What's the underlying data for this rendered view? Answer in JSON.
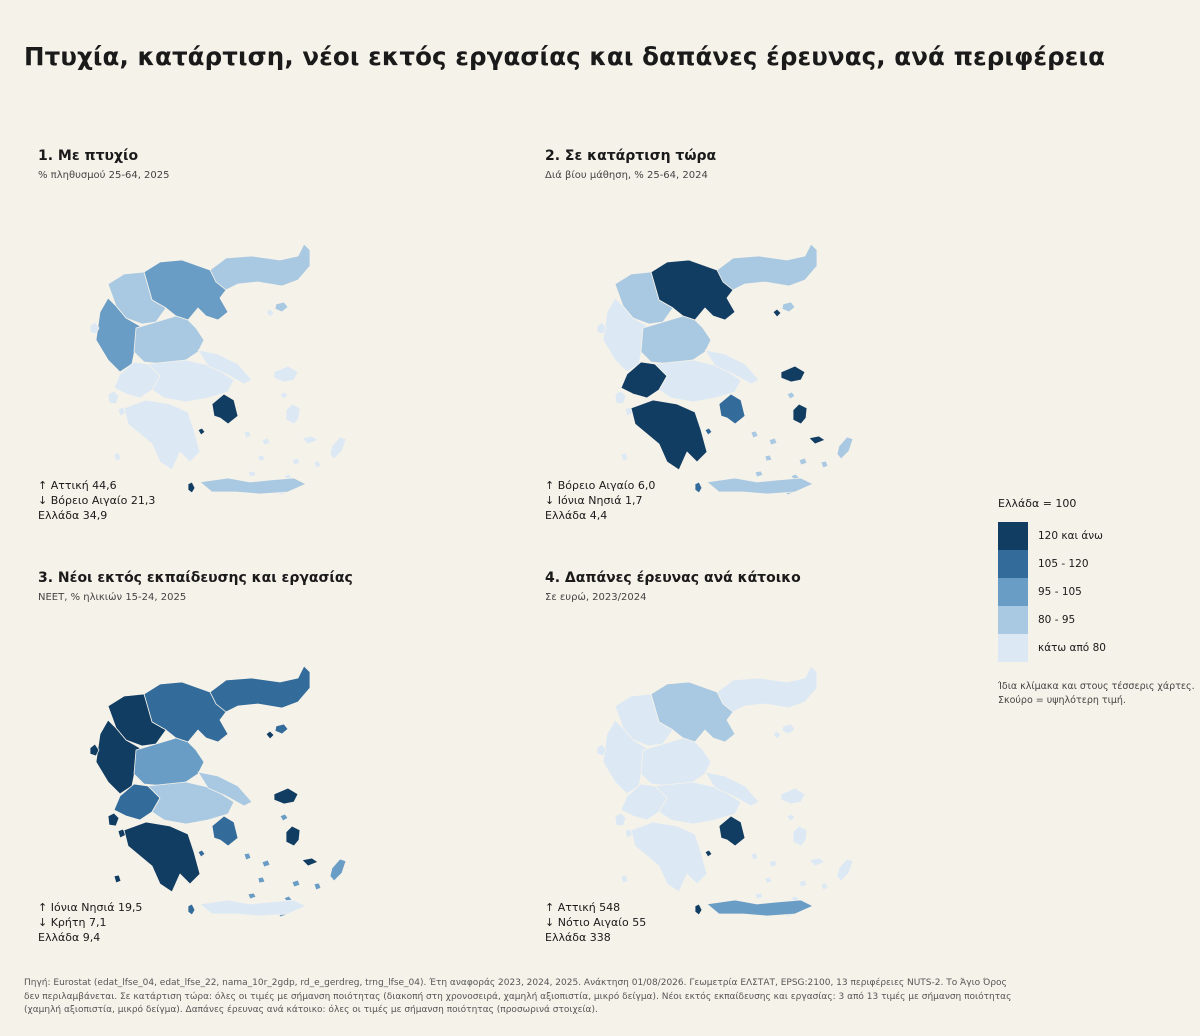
{
  "title": "Πτυχία, κατάρτιση, νέοι εκτός εργασίας και δαπάνες έρευνας, ανά περιφέρεια",
  "colors": {
    "c5": "#123d62",
    "c4": "#336b9b",
    "c3": "#6a9dc5",
    "c2": "#a9c8e1",
    "c1": "#dce9f4"
  },
  "legend": {
    "title": "Ελλάδα = 100",
    "items": [
      {
        "label": "120 και άνω",
        "color": "#123d62"
      },
      {
        "label": "105 - 120",
        "color": "#336b9b"
      },
      {
        "label": "95 - 105",
        "color": "#6a9dc5"
      },
      {
        "label": "80 - 95",
        "color": "#a9c8e1"
      },
      {
        "label": "κάτω από 80",
        "color": "#dce9f4"
      }
    ],
    "note1": "Ίδια κλίμακα και στους τέσσερις χάρτες.",
    "note2": "Σκούρο = υψηλότερη τιμή."
  },
  "panels": [
    {
      "title": "1. Με πτυχίο",
      "subtitle": "% πληθυσμού 25-64, 2025",
      "max": "↑ Αττική  44,6",
      "min": "↓ Βόρειο Αιγαίο  21,3",
      "national": "Ελλάδα  34,9",
      "regions": {
        "AMTH": "c2",
        "KMAK": "c3",
        "DMAK": "c2",
        "IPEI": "c3",
        "THES": "c2",
        "IONI": "c1",
        "DELL": "c1",
        "STEL": "c1",
        "PELO": "c1",
        "ATTI": "c5",
        "VAIG": "c1",
        "NAIG": "c1",
        "KRIT": "c2"
      }
    },
    {
      "title": "2. Σε κατάρτιση τώρα",
      "subtitle": "Διά βίου μάθηση, % 25-64, 2024",
      "max": "↑ Βόρειο Αιγαίο  6,0",
      "min": "↓ Ιόνια Νησιά  1,7",
      "national": "Ελλάδα  4,4",
      "regions": {
        "AMTH": "c2",
        "KMAK": "c5",
        "DMAK": "c2",
        "IPEI": "c1",
        "THES": "c2",
        "IONI": "c1",
        "DELL": "c5",
        "STEL": "c1",
        "PELO": "c5",
        "ATTI": "c4",
        "VAIG": "c5",
        "NAIG": "c2",
        "KRIT": "c2"
      }
    },
    {
      "title": "3. Νέοι εκτός εκπαίδευσης και εργασίας",
      "subtitle": "NEET, % ηλικιών 15-24, 2025",
      "max": "↑ Ιόνια Νησιά  19,5",
      "min": "↓ Κρήτη  7,1",
      "national": "Ελλάδα  9,4",
      "regions": {
        "AMTH": "c4",
        "KMAK": "c4",
        "DMAK": "c5",
        "IPEI": "c5",
        "THES": "c3",
        "IONI": "c5",
        "DELL": "c4",
        "STEL": "c2",
        "PELO": "c5",
        "ATTI": "c4",
        "VAIG": "c5",
        "NAIG": "c3",
        "KRIT": "c1"
      }
    },
    {
      "title": "4. Δαπάνες έρευνας ανά κάτοικο",
      "subtitle": "Σε ευρώ, 2023/2024",
      "max": "↑ Αττική  548",
      "min": "↓ Νότιο Αιγαίο  55",
      "national": "Ελλάδα  338",
      "regions": {
        "AMTH": "c1",
        "KMAK": "c2",
        "DMAK": "c1",
        "IPEI": "c1",
        "THES": "c1",
        "IONI": "c1",
        "DELL": "c1",
        "STEL": "c1",
        "PELO": "c1",
        "ATTI": "c5",
        "VAIG": "c1",
        "NAIG": "c1",
        "KRIT": "c3"
      }
    }
  ],
  "footer": "Πηγή: Eurostat (edat_lfse_04, edat_lfse_22, nama_10r_2gdp, rd_e_gerdreg, trng_lfse_04). Έτη αναφοράς 2023, 2024, 2025. Ανάκτηση 01/08/2026. Γεωμετρία ΕΛΣΤΑΤ, EPSG:2100, 13 περιφέρειες NUTS-2. Το Άγιο Όρος δεν περιλαμβάνεται. Σε κατάρτιση τώρα: όλες οι τιμές με σήμανση ποιότητας (διακοπή στη χρονοσειρά, χαμηλή αξιοπιστία, μικρό δείγμα). Νέοι εκτός εκπαίδευσης και εργασίας: 3 από 13 τιμές με σήμανση ποιότητας (χαμηλή αξιοπιστία, μικρό δείγμα). Δαπάνες έρευνας ανά κάτοικο: όλες οι τιμές με σήμανση ποιότητας (προσωρινά στοιχεία)."
}
